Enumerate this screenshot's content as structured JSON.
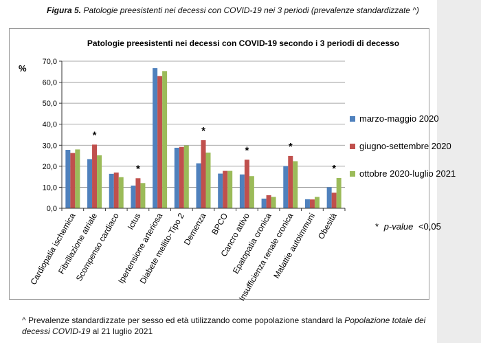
{
  "figure": {
    "label": "Figura 5.",
    "caption": " Patologie preesistenti nei decessi con COVID-19 nei 3 periodi (prevalenze standardizzate ^)"
  },
  "chart_data": {
    "type": "bar",
    "title": "Patologie preesistenti nei decessi con COVID-19 secondo i 3 periodi di decesso",
    "ylabel": "%",
    "xlabel": "",
    "ylim": [
      0,
      70
    ],
    "yticks": [
      "0,0",
      "10,0",
      "20,0",
      "30,0",
      "40,0",
      "50,0",
      "60,0",
      "70,0"
    ],
    "grid": true,
    "legend_position": "right",
    "categories": [
      "Cardiopatia ischemica",
      "Fibrillazione atriale",
      "Scompenso cardiaco",
      "Ictus",
      "Ipertensione arteriosa",
      "Diabete mellito-Tipo 2",
      "Demenza",
      "BPCO",
      "Cancro attivo",
      "Epatopatia cronica",
      "Insufficienza renale cronica",
      "Malattie autoimmuni",
      "Obesità"
    ],
    "series": [
      {
        "name": "marzo-maggio 2020",
        "color": "#4f81bd",
        "values": [
          27.8,
          23.4,
          16.4,
          10.8,
          66.7,
          28.8,
          21.4,
          16.5,
          16.1,
          4.6,
          20.1,
          4.3,
          10.0
        ]
      },
      {
        "name": "giugno-settembre 2020",
        "color": "#c0504d",
        "values": [
          26.3,
          30.3,
          17.0,
          14.3,
          62.9,
          29.2,
          32.4,
          17.8,
          23.1,
          6.2,
          24.9,
          4.2,
          7.4
        ]
      },
      {
        "name": "ottobre 2020-luglio 2021",
        "color": "#9bbb59",
        "values": [
          28.0,
          25.2,
          14.8,
          12.0,
          65.3,
          29.9,
          26.5,
          17.8,
          15.3,
          5.4,
          22.4,
          5.4,
          14.4
        ]
      }
    ],
    "significant_marker": "*",
    "significant_categories": [
      "Fibrillazione atriale",
      "Ictus",
      "Demenza",
      "Cancro attivo",
      "Insufficienza renale cronica",
      "Obesità"
    ],
    "pvalue_note": {
      "star": "*",
      "label": "p-value",
      "value": "<0,05"
    }
  },
  "footnote": {
    "text1": "^ Prevalenze standardizzate per sesso ed età utilizzando come popolazione standard la ",
    "italic": "Popolazione totale dei decessi COVID-19",
    "text2": " al 21 luglio 2021"
  }
}
